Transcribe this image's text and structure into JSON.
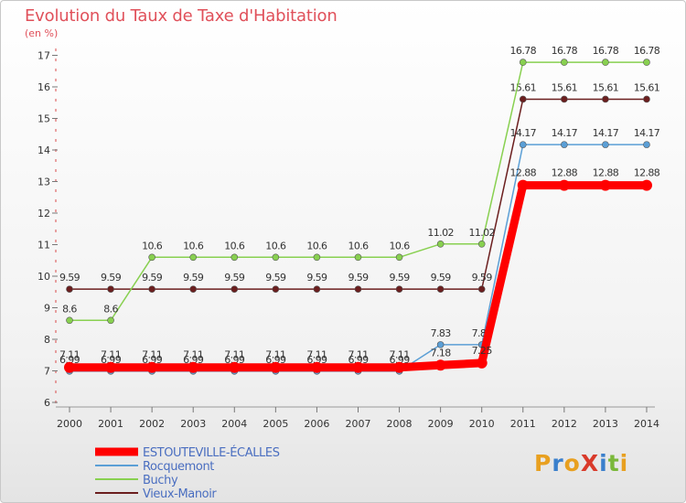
{
  "title": "Evolution du Taux de Taxe d'Habitation",
  "subtitle": "(en %)",
  "logo": {
    "text": "ProXiti",
    "colors": [
      "#e8a020",
      "#3a7fcc",
      "#e8a020",
      "#d93a2a",
      "#3a7fcc",
      "#7ab83a",
      "#e8a020"
    ]
  },
  "chart_data": {
    "type": "line",
    "x": [
      2000,
      2001,
      2002,
      2003,
      2004,
      2005,
      2006,
      2007,
      2008,
      2009,
      2010,
      2011,
      2012,
      2013,
      2014
    ],
    "ylim": [
      6,
      17
    ],
    "yticks": [
      6,
      7,
      8,
      9,
      10,
      11,
      12,
      13,
      14,
      15,
      16,
      17
    ],
    "grid": false,
    "legend_position": "bottom-left",
    "series": [
      {
        "name": "Vieux-Manoir",
        "color": "#6b1e1e",
        "labels": [
          "9.59",
          "9.59",
          "9.59",
          "9.59",
          "9.59",
          "9.59",
          "9.59",
          "9.59",
          "9.59",
          "9.59",
          "9.59",
          "15.61",
          "15.61",
          "15.61",
          "15.61"
        ],
        "values": [
          9.59,
          9.59,
          9.59,
          9.59,
          9.59,
          9.59,
          9.59,
          9.59,
          9.59,
          9.59,
          9.59,
          15.61,
          15.61,
          15.61,
          15.61
        ]
      },
      {
        "name": "Buchy",
        "color": "#88d050",
        "labels": [
          "8.6",
          "8.6",
          "10.6",
          "10.6",
          "10.6",
          "10.6",
          "10.6",
          "10.6",
          "10.6",
          "11.02",
          "11.02",
          "16.78",
          "16.78",
          "16.78",
          "16.78"
        ],
        "values": [
          8.6,
          8.6,
          10.6,
          10.6,
          10.6,
          10.6,
          10.6,
          10.6,
          10.6,
          11.02,
          11.02,
          16.78,
          16.78,
          16.78,
          16.78
        ]
      },
      {
        "name": "Rocquemont",
        "color": "#5b9fd6",
        "labels": [
          "6.99",
          "6.99",
          "6.99",
          "6.99",
          "6.99",
          "6.99",
          "6.99",
          "6.99",
          "6.99",
          "7.83",
          "7.83",
          "14.17",
          "14.17",
          "14.17",
          "14.17"
        ],
        "values": [
          6.99,
          6.99,
          6.99,
          6.99,
          6.99,
          6.99,
          6.99,
          6.99,
          6.99,
          7.83,
          7.83,
          14.17,
          14.17,
          14.17,
          14.17
        ]
      },
      {
        "name": "ESTOUTEVILLE-ÉCALLES",
        "color": "#ff0000",
        "labels": [
          "7.11",
          "7.11",
          "7.11",
          "7.11",
          "7.11",
          "7.11",
          "7.11",
          "7.11",
          "7.11",
          "7.18",
          "7.25",
          "12.88",
          "12.88",
          "12.88",
          "12.88"
        ],
        "values": [
          7.11,
          7.11,
          7.11,
          7.11,
          7.11,
          7.11,
          7.11,
          7.11,
          7.11,
          7.18,
          7.25,
          12.88,
          12.88,
          12.88,
          12.88
        ]
      }
    ],
    "legend": [
      "ESTOUTEVILLE-ÉCALLES",
      "Rocquemont",
      "Buchy",
      "Vieux-Manoir"
    ]
  }
}
